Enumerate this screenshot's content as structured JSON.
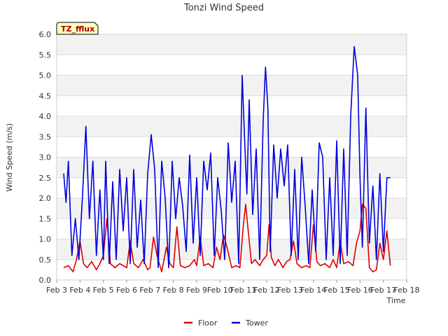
{
  "chart_data": {
    "type": "line",
    "title": "Tonzi Wind Speed",
    "xlabel": "Time",
    "ylabel": "Wind Speed (m/s)",
    "badge": "TZ_fflux",
    "xlim": [
      3,
      18
    ],
    "ylim": [
      0,
      6
    ],
    "x_ticks": [
      3,
      4,
      5,
      6,
      7,
      8,
      9,
      10,
      11,
      12,
      13,
      14,
      15,
      16,
      17,
      18
    ],
    "x_tick_labels": [
      "Feb 3",
      "Feb 4",
      "Feb 5",
      "Feb 6",
      "Feb 7",
      "Feb 8",
      "Feb 9",
      "Feb 10",
      "Feb 11",
      "Feb 12",
      "Feb 13",
      "Feb 14",
      "Feb 15",
      "Feb 16",
      "Feb 17",
      "Feb 18"
    ],
    "y_ticks": [
      0.0,
      0.5,
      1.0,
      1.5,
      2.0,
      2.5,
      3.0,
      3.5,
      4.0,
      4.5,
      5.0,
      5.5,
      6.0
    ],
    "y_tick_labels": [
      "0.0",
      "0.5",
      "1.0",
      "1.5",
      "2.0",
      "2.5",
      "3.0",
      "3.5",
      "4.0",
      "4.5",
      "5.0",
      "5.5",
      "6.0"
    ],
    "legend_position": "bottom-center",
    "series": [
      {
        "name": "Floor",
        "color": "#dd0000",
        "x": [
          3.3,
          3.5,
          3.7,
          3.85,
          4.0,
          4.15,
          4.3,
          4.5,
          4.7,
          4.85,
          5.0,
          5.15,
          5.3,
          5.5,
          5.7,
          5.85,
          6.0,
          6.15,
          6.3,
          6.5,
          6.7,
          6.9,
          7.0,
          7.15,
          7.3,
          7.5,
          7.7,
          7.85,
          8.0,
          8.15,
          8.3,
          8.5,
          8.7,
          8.9,
          9.0,
          9.15,
          9.3,
          9.5,
          9.7,
          9.85,
          10.0,
          10.15,
          10.3,
          10.5,
          10.7,
          10.85,
          11.0,
          11.1,
          11.2,
          11.35,
          11.5,
          11.7,
          11.85,
          12.0,
          12.1,
          12.2,
          12.35,
          12.5,
          12.7,
          12.85,
          13.0,
          13.15,
          13.3,
          13.5,
          13.7,
          13.85,
          14.0,
          14.15,
          14.3,
          14.5,
          14.7,
          14.85,
          15.0,
          15.15,
          15.3,
          15.5,
          15.7,
          15.85,
          16.0,
          16.1,
          16.25,
          16.4,
          16.55,
          16.7,
          16.85,
          17.0,
          17.15,
          17.3
        ],
        "values": [
          0.3,
          0.35,
          0.2,
          0.5,
          0.95,
          0.4,
          0.3,
          0.45,
          0.25,
          0.4,
          0.6,
          1.5,
          0.4,
          0.3,
          0.4,
          0.35,
          0.3,
          0.95,
          0.4,
          0.3,
          0.5,
          0.25,
          0.3,
          1.05,
          0.6,
          0.2,
          0.8,
          0.4,
          0.3,
          1.3,
          0.35,
          0.3,
          0.35,
          0.5,
          0.35,
          1.05,
          0.35,
          0.4,
          0.3,
          0.8,
          0.5,
          1.1,
          0.8,
          0.3,
          0.35,
          0.3,
          1.35,
          1.85,
          1.25,
          0.4,
          0.5,
          0.35,
          0.5,
          0.6,
          1.35,
          0.55,
          0.35,
          0.5,
          0.3,
          0.45,
          0.5,
          0.95,
          0.4,
          0.3,
          0.35,
          0.3,
          1.35,
          0.45,
          0.35,
          0.4,
          0.3,
          0.5,
          0.3,
          0.95,
          0.4,
          0.45,
          0.35,
          0.9,
          1.2,
          1.85,
          1.75,
          0.3,
          0.2,
          0.25,
          0.9,
          0.5,
          1.2,
          0.35
        ]
      },
      {
        "name": "Tower",
        "color": "#0000dd",
        "x": [
          3.3,
          3.4,
          3.5,
          3.65,
          3.8,
          3.95,
          4.1,
          4.25,
          4.4,
          4.55,
          4.7,
          4.85,
          5.0,
          5.1,
          5.25,
          5.4,
          5.55,
          5.7,
          5.85,
          6.0,
          6.15,
          6.3,
          6.45,
          6.6,
          6.75,
          6.9,
          7.05,
          7.2,
          7.35,
          7.5,
          7.65,
          7.8,
          7.95,
          8.1,
          8.25,
          8.4,
          8.55,
          8.7,
          8.85,
          9.0,
          9.15,
          9.3,
          9.45,
          9.6,
          9.75,
          9.9,
          10.05,
          10.2,
          10.35,
          10.5,
          10.65,
          10.8,
          10.95,
          11.05,
          11.15,
          11.25,
          11.4,
          11.55,
          11.7,
          11.85,
          11.95,
          12.05,
          12.15,
          12.3,
          12.45,
          12.6,
          12.75,
          12.9,
          13.05,
          13.2,
          13.35,
          13.5,
          13.65,
          13.8,
          13.95,
          14.1,
          14.25,
          14.4,
          14.55,
          14.7,
          14.85,
          15.0,
          15.15,
          15.3,
          15.45,
          15.6,
          15.75,
          15.9,
          16.0,
          16.1,
          16.25,
          16.4,
          16.55,
          16.7,
          16.85,
          17.0,
          17.15,
          17.3
        ],
        "values": [
          2.6,
          1.9,
          2.9,
          0.6,
          1.5,
          0.5,
          2.0,
          3.75,
          1.5,
          2.9,
          0.6,
          2.2,
          0.5,
          2.9,
          0.4,
          2.4,
          0.5,
          2.7,
          1.2,
          2.5,
          0.4,
          2.7,
          0.8,
          1.95,
          0.4,
          2.6,
          3.55,
          2.7,
          0.3,
          2.9,
          2.0,
          0.3,
          2.9,
          1.5,
          2.5,
          1.8,
          0.7,
          3.05,
          0.9,
          2.5,
          0.6,
          2.9,
          2.2,
          3.1,
          0.6,
          2.5,
          1.7,
          0.5,
          3.35,
          1.9,
          2.9,
          0.4,
          5.0,
          3.5,
          2.1,
          4.4,
          1.6,
          3.2,
          0.5,
          3.9,
          5.2,
          4.2,
          0.7,
          3.3,
          2.0,
          3.2,
          2.3,
          3.3,
          0.6,
          2.7,
          0.5,
          3.0,
          1.8,
          0.4,
          2.2,
          0.7,
          3.35,
          3.0,
          0.5,
          2.5,
          0.6,
          3.4,
          0.4,
          3.2,
          0.6,
          4.0,
          5.7,
          5.0,
          2.5,
          0.8,
          4.2,
          0.9,
          2.3,
          0.5,
          2.6,
          0.7,
          2.5,
          2.5
        ]
      }
    ]
  }
}
